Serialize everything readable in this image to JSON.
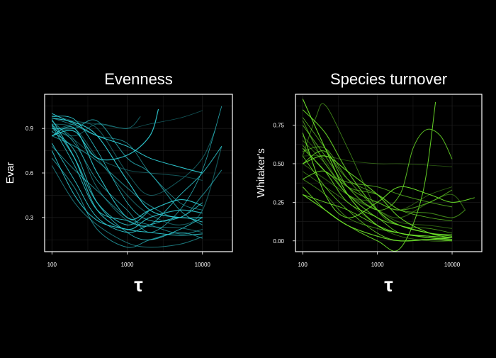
{
  "colors": {
    "background": "#000000",
    "panel_border": "#ffffff",
    "grid": "#1f1f1f",
    "text": "#ffffff",
    "evenness_line": "#2fd0d8",
    "turnover_line": "#6ee62a"
  },
  "chart_data": [
    {
      "type": "line",
      "title": "Evenness",
      "xlabel": "τ",
      "ylabel": "Evar",
      "x_scale": "log",
      "xlim": [
        80,
        25000
      ],
      "ylim": [
        0.07,
        1.13
      ],
      "x_ticks": [
        100,
        1000,
        10000
      ],
      "x_tick_labels": [
        "100",
        "1000",
        "10000"
      ],
      "y_ticks": [
        0.3,
        0.6,
        0.9
      ],
      "y_tick_labels": [
        "0.3",
        "0.6",
        "0.9"
      ],
      "grid": true,
      "legend": "none",
      "series": [
        {
          "x": [
            100,
            200,
            400,
            1000,
            2000,
            5000,
            10000
          ],
          "y": [
            0.97,
            0.94,
            0.85,
            0.55,
            0.35,
            0.3,
            0.3
          ]
        },
        {
          "x": [
            100,
            200,
            400,
            1000,
            2000,
            5000,
            10000
          ],
          "y": [
            0.92,
            0.82,
            0.5,
            0.28,
            0.24,
            0.23,
            0.2
          ]
        },
        {
          "x": [
            100,
            200,
            400,
            1000,
            2000,
            5000,
            10000
          ],
          "y": [
            0.88,
            0.75,
            0.4,
            0.2,
            0.15,
            0.22,
            0.3
          ]
        },
        {
          "x": [
            100,
            200,
            400,
            1000,
            2000,
            5000,
            10000
          ],
          "y": [
            0.99,
            0.95,
            0.93,
            0.9,
            0.93,
            0.97,
            1.02
          ]
        },
        {
          "x": [
            100,
            200,
            400,
            1000,
            2000,
            2600
          ],
          "y": [
            0.85,
            0.88,
            0.7,
            0.72,
            0.85,
            1.03
          ]
        },
        {
          "x": [
            100,
            200,
            400,
            1000,
            2000,
            5000,
            10000
          ],
          "y": [
            0.9,
            0.9,
            0.95,
            0.7,
            0.6,
            0.35,
            0.25
          ]
        },
        {
          "x": [
            100,
            200,
            400,
            1000,
            2000,
            5000,
            10000
          ],
          "y": [
            0.8,
            0.55,
            0.3,
            0.2,
            0.25,
            0.3,
            0.27
          ]
        },
        {
          "x": [
            100,
            200,
            400,
            1000,
            2000,
            5000,
            10000
          ],
          "y": [
            0.65,
            0.4,
            0.25,
            0.13,
            0.1,
            0.12,
            0.17
          ]
        },
        {
          "x": [
            100,
            200,
            400,
            1000,
            2000,
            5000,
            10000,
            18000
          ],
          "y": [
            0.95,
            0.8,
            0.55,
            0.35,
            0.2,
            0.35,
            0.62,
            1.05
          ]
        },
        {
          "x": [
            100,
            200,
            400,
            1000,
            2000,
            5000,
            10000,
            18000
          ],
          "y": [
            0.93,
            0.9,
            0.7,
            0.45,
            0.32,
            0.25,
            0.35,
            0.78
          ]
        },
        {
          "x": [
            100,
            200,
            400,
            1000,
            2000,
            5000,
            10000
          ],
          "y": [
            0.85,
            0.9,
            0.6,
            0.3,
            0.35,
            0.42,
            0.38
          ]
        },
        {
          "x": [
            100,
            200,
            400,
            1000,
            2000,
            5000,
            10000
          ],
          "y": [
            0.78,
            0.62,
            0.48,
            0.3,
            0.25,
            0.19,
            0.22
          ]
        },
        {
          "x": [
            100,
            200,
            400,
            1000,
            2000,
            5000,
            10000
          ],
          "y": [
            1.0,
            0.93,
            0.85,
            0.78,
            0.7,
            0.64,
            0.6
          ]
        },
        {
          "x": [
            100,
            200,
            400,
            1000,
            1500
          ],
          "y": [
            0.9,
            0.85,
            0.93,
            0.9,
            0.98
          ]
        },
        {
          "x": [
            100,
            200,
            400,
            1000,
            2000,
            5000,
            10000
          ],
          "y": [
            0.96,
            0.7,
            0.35,
            0.22,
            0.3,
            0.35,
            0.33
          ]
        },
        {
          "x": [
            100,
            200,
            400,
            1000,
            2000,
            5000,
            10000,
            15000
          ],
          "y": [
            0.88,
            0.93,
            0.9,
            0.6,
            0.45,
            0.55,
            0.7,
            0.9
          ]
        },
        {
          "x": [
            100,
            200,
            400,
            1000,
            2000,
            5000,
            10000,
            18000
          ],
          "y": [
            0.92,
            0.65,
            0.35,
            0.28,
            0.25,
            0.45,
            0.6,
            0.78
          ]
        },
        {
          "x": [
            100,
            200,
            400,
            1000,
            2000,
            5000,
            10000
          ],
          "y": [
            0.7,
            0.5,
            0.22,
            0.1,
            0.15,
            0.2,
            0.16
          ]
        },
        {
          "x": [
            100,
            200,
            400,
            1000,
            2000,
            5000,
            10000
          ],
          "y": [
            0.98,
            0.96,
            0.75,
            0.4,
            0.28,
            0.3,
            0.4
          ]
        },
        {
          "x": [
            100,
            200,
            400,
            1000,
            2000,
            5000,
            10000,
            18000
          ],
          "y": [
            0.85,
            0.78,
            0.68,
            0.5,
            0.38,
            0.3,
            0.45,
            0.62
          ]
        },
        {
          "x": [
            100,
            200,
            400,
            1000,
            2000
          ],
          "y": [
            0.93,
            0.7,
            0.4,
            0.25,
            0.35
          ]
        },
        {
          "x": [
            100,
            200,
            400,
            1000,
            2000,
            5000,
            10000
          ],
          "y": [
            0.9,
            0.82,
            0.7,
            0.62,
            0.6,
            0.58,
            0.55
          ]
        },
        {
          "x": [
            100,
            200,
            400,
            1000,
            2000,
            5000,
            10000
          ],
          "y": [
            0.75,
            0.45,
            0.28,
            0.22,
            0.2,
            0.18,
            0.19
          ]
        },
        {
          "x": [
            100,
            200,
            400,
            1000,
            2000,
            5000,
            10000
          ],
          "y": [
            0.97,
            0.92,
            0.85,
            0.8,
            0.6,
            0.4,
            0.35
          ]
        }
      ]
    },
    {
      "type": "line",
      "title": "Species turnover",
      "xlabel": "τ",
      "ylabel": "Whitaker's",
      "x_scale": "log",
      "xlim": [
        80,
        25000
      ],
      "ylim": [
        -0.07,
        0.95
      ],
      "x_ticks": [
        100,
        1000,
        10000
      ],
      "x_tick_labels": [
        "100",
        "1000",
        "10000"
      ],
      "y_ticks": [
        0.0,
        0.25,
        0.5,
        0.75
      ],
      "y_tick_labels": [
        "0.00",
        "0.25",
        "0.50",
        "0.75"
      ],
      "grid": true,
      "legend": "none",
      "series": [
        {
          "x": [
            100,
            200,
            400,
            1000,
            2000,
            5000,
            10000
          ],
          "y": [
            0.92,
            0.6,
            0.3,
            0.1,
            0.05,
            0.02,
            0.01
          ]
        },
        {
          "x": [
            100,
            150,
            200,
            400,
            1000,
            2000,
            5000,
            10000
          ],
          "y": [
            0.55,
            0.8,
            0.88,
            0.6,
            0.2,
            0.1,
            0.05,
            0.03
          ]
        },
        {
          "x": [
            100,
            200,
            400,
            1000,
            2000,
            3000,
            4500,
            7000,
            10000
          ],
          "y": [
            0.5,
            0.58,
            0.35,
            0.2,
            0.3,
            0.6,
            0.72,
            0.68,
            0.53
          ]
        },
        {
          "x": [
            100,
            200,
            400,
            1000,
            2000,
            5000,
            10000
          ],
          "y": [
            0.55,
            0.55,
            0.52,
            0.5,
            0.5,
            0.49,
            0.48
          ]
        },
        {
          "x": [
            100,
            200,
            400,
            1000,
            2000,
            5000,
            10000
          ],
          "y": [
            0.3,
            0.2,
            0.1,
            0.03,
            0.0,
            0.01,
            0.0
          ]
        },
        {
          "x": [
            100,
            200,
            400,
            1000,
            2000,
            5000,
            10000
          ],
          "y": [
            0.75,
            0.55,
            0.35,
            0.25,
            0.2,
            0.25,
            0.33
          ]
        },
        {
          "x": [
            100,
            200,
            400,
            1000,
            2000,
            5000,
            10000
          ],
          "y": [
            0.6,
            0.45,
            0.25,
            0.15,
            0.05,
            0.03,
            0.02
          ]
        },
        {
          "x": [
            100,
            200,
            400,
            1000,
            2000,
            5000,
            10000
          ],
          "y": [
            0.4,
            0.3,
            0.15,
            0.08,
            0.05,
            0.02,
            0.01
          ]
        },
        {
          "x": [
            100,
            200,
            400,
            1000,
            2000,
            5000,
            10000
          ],
          "y": [
            0.8,
            0.6,
            0.4,
            0.3,
            0.2,
            0.15,
            0.13
          ]
        },
        {
          "x": [
            100,
            200,
            400,
            1000,
            2000,
            5000,
            10000,
            15000
          ],
          "y": [
            0.65,
            0.5,
            0.3,
            0.2,
            0.15,
            0.25,
            0.3,
            0.2
          ]
        },
        {
          "x": [
            100,
            200,
            400,
            1000,
            2000,
            5000,
            10000
          ],
          "y": [
            0.5,
            0.55,
            0.45,
            0.3,
            0.15,
            0.05,
            0.02
          ]
        },
        {
          "x": [
            100,
            200,
            400,
            1000,
            2000,
            5000,
            10000
          ],
          "y": [
            0.58,
            0.6,
            0.4,
            0.2,
            0.1,
            0.08,
            0.05
          ]
        },
        {
          "x": [
            100,
            200,
            400,
            1000,
            2000,
            5000,
            10000,
            20000
          ],
          "y": [
            0.7,
            0.3,
            0.15,
            0.25,
            0.35,
            0.3,
            0.25,
            0.28
          ]
        },
        {
          "x": [
            100,
            200,
            400,
            1000,
            2000,
            5000,
            10000
          ],
          "y": [
            0.45,
            0.35,
            0.25,
            0.1,
            0.03,
            0.0,
            0.0
          ]
        },
        {
          "x": [
            100,
            200,
            400,
            1000,
            2000,
            5000,
            10000
          ],
          "y": [
            0.85,
            0.7,
            0.45,
            0.2,
            0.1,
            0.05,
            0.03
          ]
        },
        {
          "x": [
            100,
            200,
            400,
            1000,
            2000,
            5000,
            10000
          ],
          "y": [
            0.5,
            0.4,
            0.3,
            0.2,
            0.12,
            0.1,
            0.08
          ]
        },
        {
          "x": [
            100,
            200,
            400,
            1000,
            2000,
            5000,
            10000
          ],
          "y": [
            0.3,
            0.25,
            0.2,
            0.1,
            0.05,
            0.03,
            0.02
          ]
        },
        {
          "x": [
            100,
            200,
            400,
            1000,
            2000,
            5000,
            10000
          ],
          "y": [
            0.62,
            0.45,
            0.38,
            0.35,
            0.3,
            0.25,
            0.22
          ]
        },
        {
          "x": [
            100,
            200,
            400,
            1000,
            2000,
            5000,
            10000
          ],
          "y": [
            0.55,
            0.35,
            0.2,
            0.05,
            0.0,
            0.01,
            0.02
          ]
        },
        {
          "x": [
            100,
            200,
            400,
            1000,
            2000,
            5000,
            10000,
            15000
          ],
          "y": [
            0.78,
            0.5,
            0.35,
            0.3,
            0.2,
            0.18,
            0.15,
            0.2
          ]
        },
        {
          "x": [
            100,
            200,
            400,
            1000,
            2000,
            5000,
            10000
          ],
          "y": [
            0.4,
            0.45,
            0.3,
            0.15,
            0.1,
            0.05,
            0.04
          ]
        },
        {
          "x": [
            100,
            200,
            400,
            1000,
            2000,
            5000,
            10000
          ],
          "y": [
            0.68,
            0.52,
            0.3,
            0.25,
            0.2,
            0.3,
            0.35
          ]
        },
        {
          "x": [
            100,
            200,
            400,
            1000,
            2000,
            4000,
            6000
          ],
          "y": [
            0.35,
            0.2,
            0.1,
            0.0,
            -0.05,
            0.3,
            0.9
          ]
        }
      ]
    }
  ]
}
